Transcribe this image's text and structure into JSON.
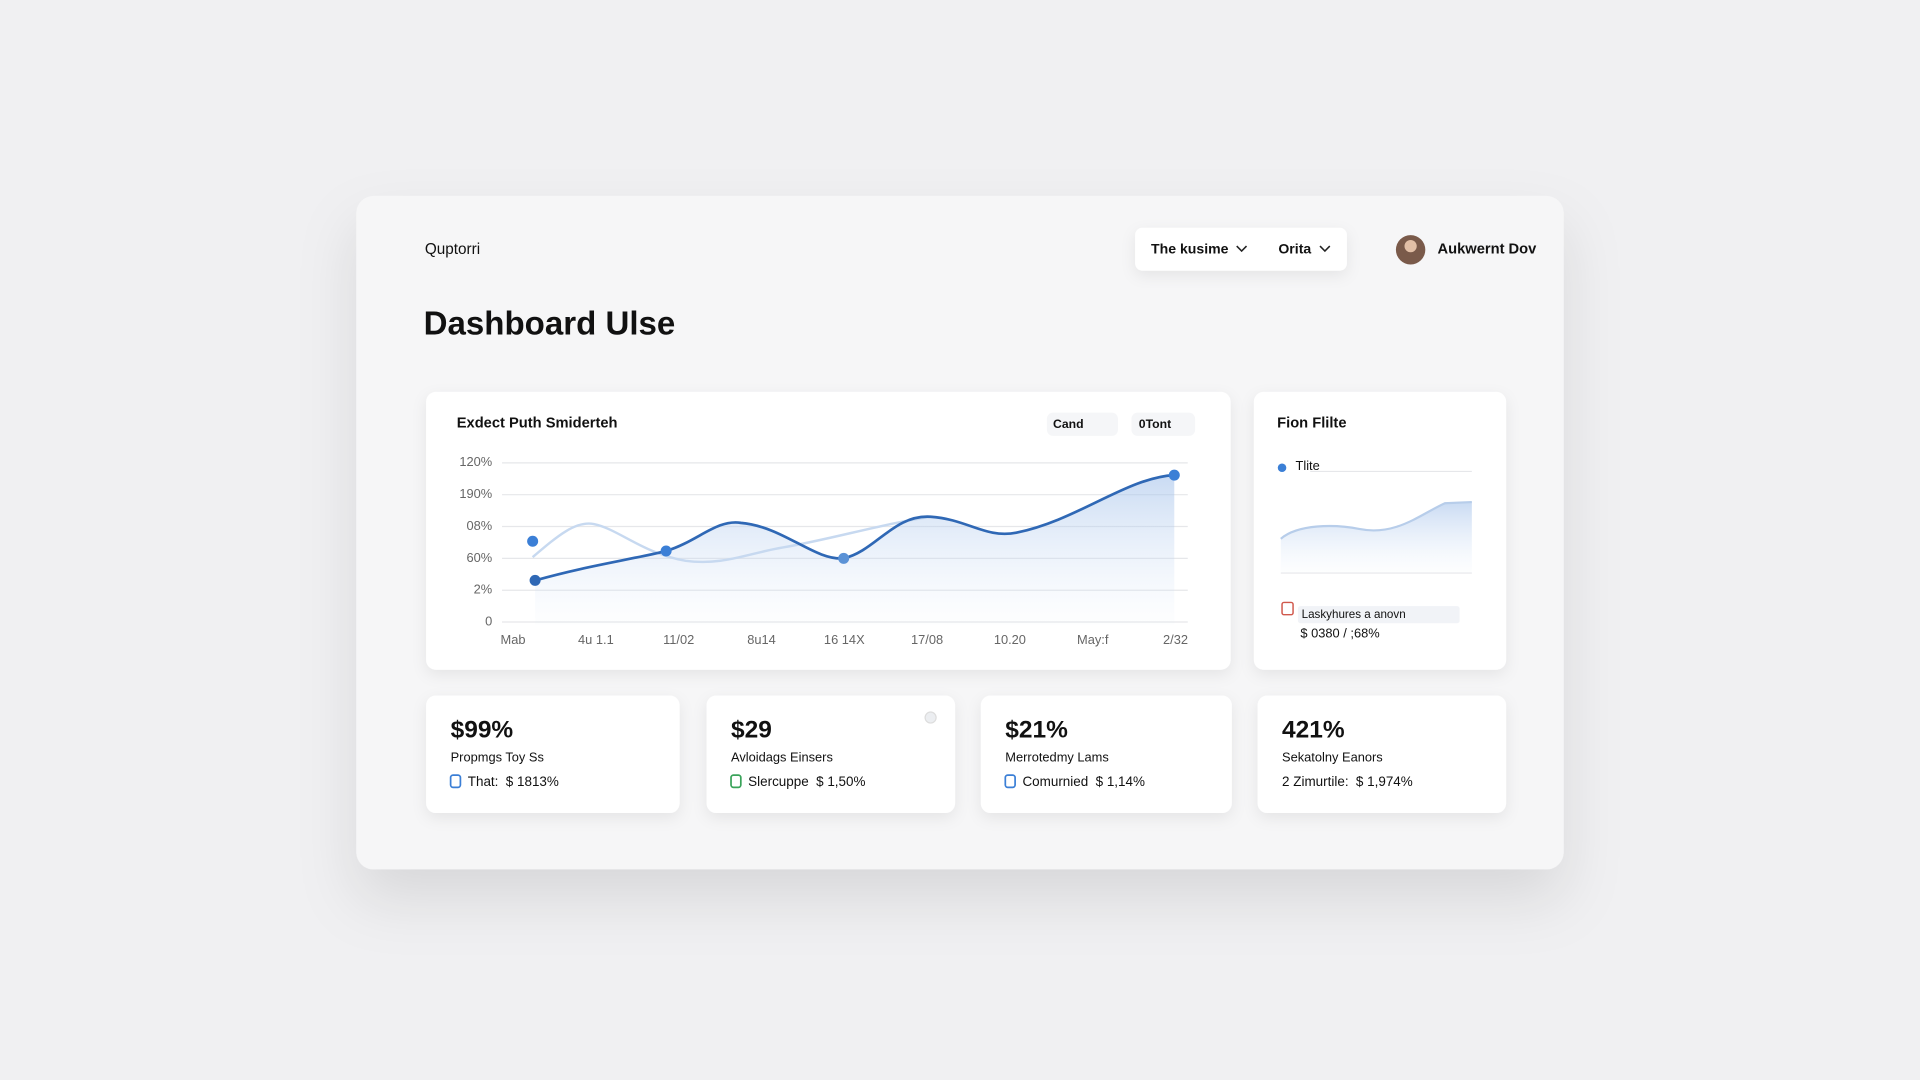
{
  "header": {
    "brand": "Quptorri",
    "filters": [
      "The kusime",
      "Orita"
    ],
    "user": "Aukwernt Dov"
  },
  "title": "Dashboard Ulse",
  "main_chart": {
    "title": "Exdect Puth Smiderteh",
    "chips": [
      "Cand",
      "0Tont"
    ],
    "y_labels": [
      "120%",
      "190%",
      "08%",
      "60%",
      "2%",
      "0"
    ],
    "x_labels": [
      "Mab",
      "4u 1.1",
      "11/02",
      "8u14",
      "16 14X",
      "17/08",
      "10.20",
      "May:f",
      "2/32"
    ]
  },
  "side_card": {
    "title": "Fion Flilte",
    "legend": "Tlite",
    "note": "Laskyhures a anovn",
    "note_value": "$ 0380 / ;68%"
  },
  "stats": [
    {
      "value": "$99%",
      "label": "Propmgs Toy Ss",
      "sub_label": "That:",
      "change": "$ 1813%"
    },
    {
      "value": "$29",
      "label": "Avloidags Einsers",
      "sub_label": "Slercuppe",
      "change": "$ 1,50%"
    },
    {
      "value": "$21%",
      "label": "Merrotedmy Lams",
      "sub_label": "Comurnied",
      "change": "$ 1,14%"
    },
    {
      "value": "421%",
      "label": "Sekatolny Eanors",
      "sub_label": "2 Zimurtile:",
      "change": "$ 1,974%"
    }
  ]
}
